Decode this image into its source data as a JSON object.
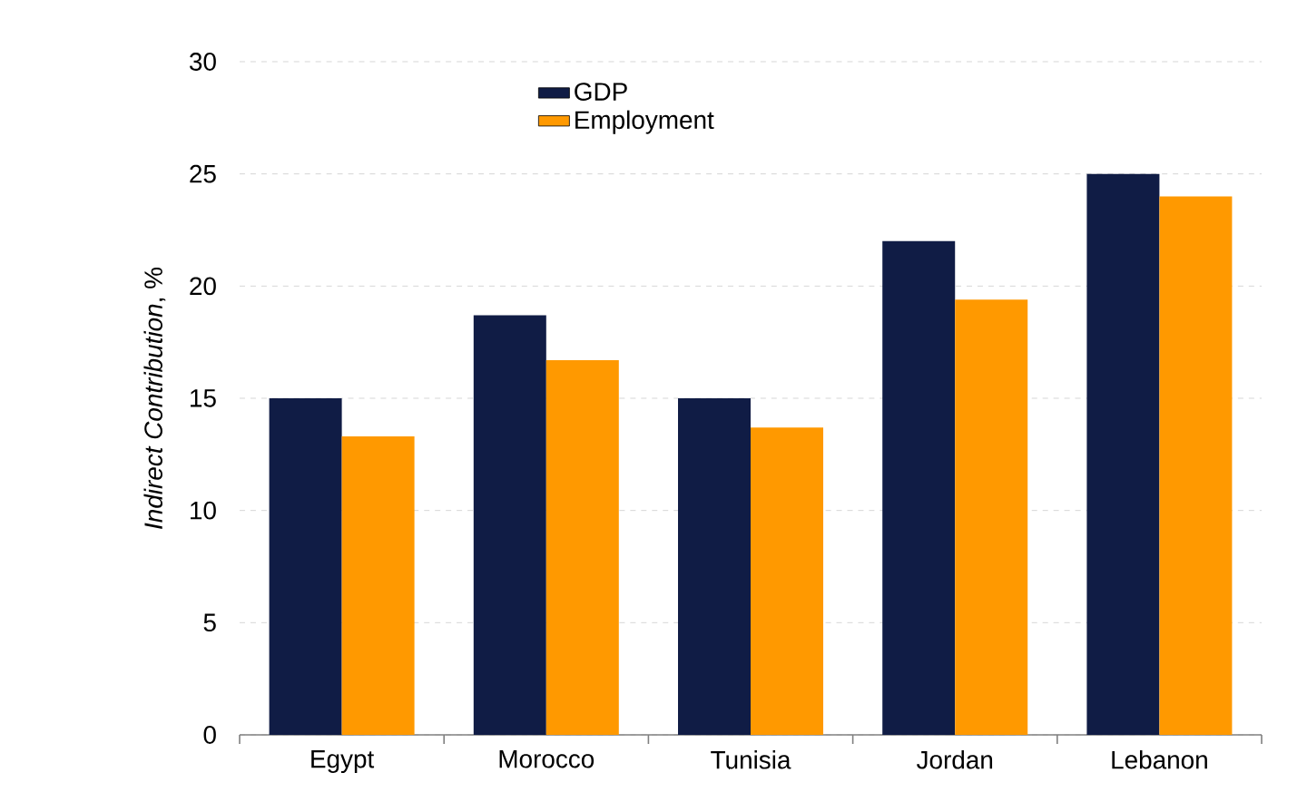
{
  "chart_data": {
    "type": "bar",
    "ylabel": "*Indirect Contribution*, %",
    "categories": [
      "Egypt",
      "Morocco",
      "Tunisia",
      "Jordan",
      "Lebanon"
    ],
    "series": [
      {
        "name": "GDP",
        "color": "#101c45",
        "values": [
          15.0,
          18.7,
          15.0,
          22.0,
          25.0
        ]
      },
      {
        "name": "Employment",
        "color": "#ff9900",
        "values": [
          13.3,
          16.7,
          13.7,
          19.4,
          24.0
        ]
      }
    ],
    "ylim": [
      0,
      30
    ],
    "yticks": [
      0,
      5,
      10,
      15,
      20,
      25,
      30
    ],
    "grid": "y",
    "legend": "top"
  }
}
